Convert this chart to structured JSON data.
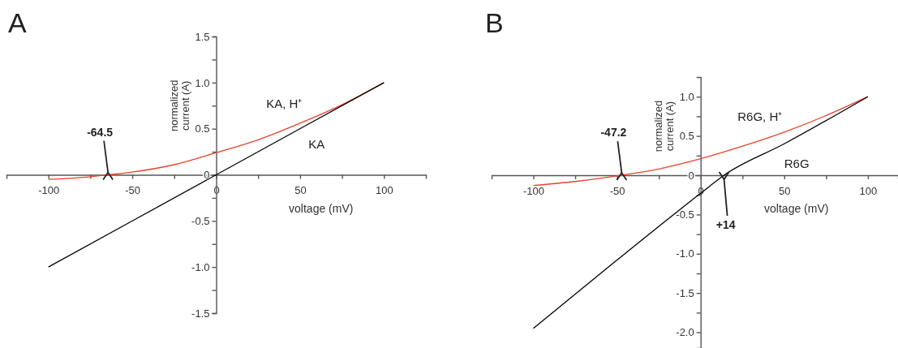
{
  "chart_data": [
    {
      "type": "line",
      "title": "A",
      "xlabel": "voltage (mV)",
      "ylabel": "normalized current (A)",
      "legend": false,
      "grid": false,
      "xlim": [
        -125,
        125
      ],
      "ylim": [
        -1.5,
        1.5
      ],
      "xticks": [
        -100,
        {
          "value": -75,
          "label": null
        },
        -50,
        {
          "value": -25,
          "label": null
        },
        0,
        {
          "value": 25,
          "label": null
        },
        50,
        {
          "value": 75,
          "label": null
        },
        100
      ],
      "yticks": [
        -1.5,
        {
          "value": -1.25,
          "label": null
        },
        {
          "value": -1,
          "label": "-1.0"
        },
        {
          "value": -0.75,
          "label": null
        },
        -0.5,
        {
          "value": -0.25,
          "label": null
        },
        0,
        {
          "value": 0.25,
          "label": null
        },
        0.5,
        {
          "value": 0.75,
          "label": null
        },
        {
          "value": 1,
          "label": "1.0"
        },
        {
          "value": 1.25,
          "label": null
        },
        1.5
      ],
      "series": [
        {
          "name": "KA, H⁺",
          "color": "#e8412c",
          "x": [
            -100,
            -75,
            -64.5,
            -50,
            -25,
            0,
            25,
            50,
            75,
            100
          ],
          "values": [
            -0.05,
            -0.02,
            0,
            0.03,
            0.11,
            0.24,
            0.38,
            0.56,
            0.76,
            1.0
          ]
        },
        {
          "name": "KA",
          "color": "#000000",
          "x": [
            -100,
            0,
            100
          ],
          "values": [
            -1.0,
            0,
            1.0
          ]
        }
      ],
      "annotations": [
        {
          "text": "-64.5",
          "x": -64.5,
          "y": 0
        }
      ]
    },
    {
      "type": "line",
      "title": "B",
      "xlabel": "voltage (mV)",
      "ylabel": "normalized current (A)",
      "legend": false,
      "grid": false,
      "xlim": [
        -125,
        118
      ],
      "ylim": [
        -2.2,
        1.25
      ],
      "xticks": [
        -100,
        {
          "value": -75,
          "label": null
        },
        -50,
        {
          "value": -25,
          "label": null
        },
        0,
        {
          "value": 25,
          "label": null
        },
        50,
        {
          "value": 75,
          "label": null
        },
        100
      ],
      "yticks": [
        {
          "value": -2,
          "label": "-2.0"
        },
        {
          "value": -1.75,
          "label": null
        },
        -1.5,
        {
          "value": -1.25,
          "label": null
        },
        {
          "value": -1,
          "label": "-1.0"
        },
        {
          "value": -0.75,
          "label": null
        },
        -0.5,
        {
          "value": -0.25,
          "label": null
        },
        0,
        {
          "value": 0.25,
          "label": null
        },
        0.5,
        {
          "value": 0.75,
          "label": null
        },
        {
          "value": 1,
          "label": "1.0"
        }
      ],
      "series": [
        {
          "name": "R6G, H⁺",
          "color": "#e8412c",
          "x": [
            -100,
            -75,
            -47.2,
            -25,
            0,
            25,
            50,
            75,
            100
          ],
          "values": [
            -0.13,
            -0.08,
            0,
            0.08,
            0.21,
            0.37,
            0.55,
            0.76,
            1.0
          ]
        },
        {
          "name": "R6G",
          "color": "#000000",
          "x": [
            -100,
            -50,
            0,
            14,
            50,
            100
          ],
          "values": [
            -1.95,
            -1.08,
            -0.23,
            0,
            0.4,
            1.0
          ]
        }
      ],
      "annotations": [
        {
          "text": "-47.2",
          "x": -47.2,
          "y": 0
        },
        {
          "text": "+14",
          "x": 14,
          "y": 0
        }
      ]
    }
  ]
}
